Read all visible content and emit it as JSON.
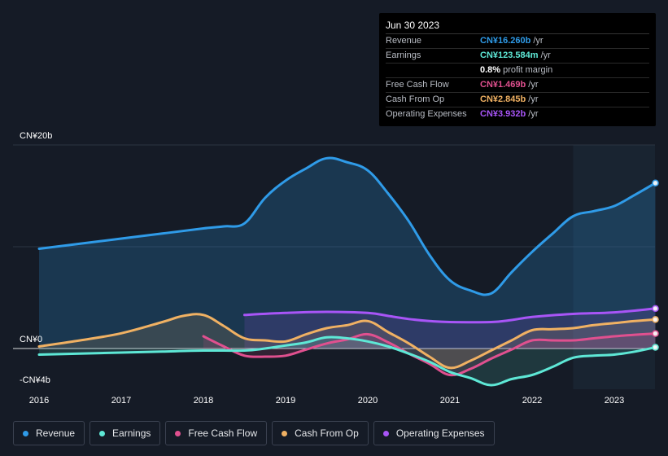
{
  "tooltip": {
    "date": "Jun 30 2023",
    "rows": [
      {
        "label": "Revenue",
        "value": "CN¥16.260b",
        "unit": "/yr",
        "color": "#2f9be8"
      },
      {
        "label": "Earnings",
        "value": "CN¥123.584m",
        "unit": "/yr",
        "color": "#5ee8d6"
      },
      {
        "label": "",
        "value": "0.8%",
        "unit": "profit margin",
        "color": "#ffffff"
      },
      {
        "label": "Free Cash Flow",
        "value": "CN¥1.469b",
        "unit": "/yr",
        "color": "#e0508f"
      },
      {
        "label": "Cash From Op",
        "value": "CN¥2.845b",
        "unit": "/yr",
        "color": "#f0b163"
      },
      {
        "label": "Operating Expenses",
        "value": "CN¥3.932b",
        "unit": "/yr",
        "color": "#a855f7"
      }
    ]
  },
  "legend": [
    {
      "label": "Revenue",
      "color": "#2f9be8"
    },
    {
      "label": "Earnings",
      "color": "#5ee8d6"
    },
    {
      "label": "Free Cash Flow",
      "color": "#e0508f"
    },
    {
      "label": "Cash From Op",
      "color": "#f0b163"
    },
    {
      "label": "Operating Expenses",
      "color": "#a855f7"
    }
  ],
  "chart_data": {
    "type": "line",
    "title": "",
    "xlabel": "",
    "ylabel": "",
    "ylim": [
      -4,
      20
    ],
    "xlim": [
      2015.67,
      2023.5
    ],
    "y_tick_labels": [
      {
        "value": 20,
        "label": "CN¥20b"
      },
      {
        "value": 0,
        "label": "CN¥0"
      },
      {
        "value": -4,
        "label": "-CN¥4b"
      }
    ],
    "x_ticks": [
      2016,
      2017,
      2018,
      2019,
      2020,
      2021,
      2022,
      2023
    ],
    "x_tick_labels": [
      "2016",
      "2017",
      "2018",
      "2019",
      "2020",
      "2021",
      "2022",
      "2023"
    ],
    "gridlines": [
      20,
      10,
      0
    ],
    "highlight_start": 2022.5,
    "series": [
      {
        "name": "Revenue",
        "color": "#2f9be8",
        "fill": true,
        "points": [
          [
            2016,
            9.8
          ],
          [
            2016.5,
            10.3
          ],
          [
            2017,
            10.8
          ],
          [
            2017.5,
            11.3
          ],
          [
            2018,
            11.8
          ],
          [
            2018.25,
            12.0
          ],
          [
            2018.5,
            12.3
          ],
          [
            2018.75,
            14.8
          ],
          [
            2019,
            16.5
          ],
          [
            2019.25,
            17.7
          ],
          [
            2019.5,
            18.7
          ],
          [
            2019.75,
            18.3
          ],
          [
            2020,
            17.5
          ],
          [
            2020.25,
            15.2
          ],
          [
            2020.5,
            12.5
          ],
          [
            2020.75,
            9.2
          ],
          [
            2021,
            6.7
          ],
          [
            2021.25,
            5.7
          ],
          [
            2021.5,
            5.4
          ],
          [
            2021.75,
            7.5
          ],
          [
            2022,
            9.5
          ],
          [
            2022.25,
            11.3
          ],
          [
            2022.5,
            13.0
          ],
          [
            2022.75,
            13.5
          ],
          [
            2023,
            14.0
          ],
          [
            2023.25,
            15.1
          ],
          [
            2023.5,
            16.26
          ]
        ]
      },
      {
        "name": "Earnings",
        "color": "#5ee8d6",
        "fill": true,
        "points": [
          [
            2016,
            -0.6
          ],
          [
            2016.5,
            -0.5
          ],
          [
            2017,
            -0.4
          ],
          [
            2017.5,
            -0.3
          ],
          [
            2018,
            -0.2
          ],
          [
            2018.5,
            -0.2
          ],
          [
            2018.75,
            0.0
          ],
          [
            2019,
            0.3
          ],
          [
            2019.25,
            0.6
          ],
          [
            2019.5,
            1.1
          ],
          [
            2019.75,
            1.0
          ],
          [
            2020,
            0.7
          ],
          [
            2020.25,
            0.2
          ],
          [
            2020.5,
            -0.5
          ],
          [
            2020.75,
            -1.3
          ],
          [
            2021,
            -2.3
          ],
          [
            2021.25,
            -2.9
          ],
          [
            2021.5,
            -3.6
          ],
          [
            2021.75,
            -3.0
          ],
          [
            2022,
            -2.6
          ],
          [
            2022.25,
            -1.8
          ],
          [
            2022.5,
            -0.9
          ],
          [
            2022.75,
            -0.7
          ],
          [
            2023,
            -0.6
          ],
          [
            2023.25,
            -0.3
          ],
          [
            2023.5,
            0.12
          ]
        ]
      },
      {
        "name": "Free Cash Flow",
        "color": "#e0508f",
        "fill": true,
        "points": [
          [
            2018,
            1.2
          ],
          [
            2018.25,
            0.2
          ],
          [
            2018.5,
            -0.7
          ],
          [
            2018.75,
            -0.8
          ],
          [
            2019,
            -0.7
          ],
          [
            2019.25,
            -0.1
          ],
          [
            2019.5,
            0.5
          ],
          [
            2019.75,
            0.9
          ],
          [
            2020,
            1.4
          ],
          [
            2020.25,
            0.6
          ],
          [
            2020.5,
            -0.5
          ],
          [
            2020.75,
            -1.5
          ],
          [
            2021,
            -2.6
          ],
          [
            2021.25,
            -2.0
          ],
          [
            2021.5,
            -1.0
          ],
          [
            2021.75,
            -0.1
          ],
          [
            2022,
            0.8
          ],
          [
            2022.25,
            0.8
          ],
          [
            2022.5,
            0.8
          ],
          [
            2022.75,
            1.0
          ],
          [
            2023,
            1.2
          ],
          [
            2023.25,
            1.35
          ],
          [
            2023.5,
            1.47
          ]
        ]
      },
      {
        "name": "Cash From Op",
        "color": "#f0b163",
        "fill": true,
        "points": [
          [
            2016,
            0.2
          ],
          [
            2016.5,
            0.8
          ],
          [
            2017,
            1.5
          ],
          [
            2017.5,
            2.6
          ],
          [
            2017.75,
            3.2
          ],
          [
            2018,
            3.3
          ],
          [
            2018.25,
            2.2
          ],
          [
            2018.5,
            1.0
          ],
          [
            2018.75,
            0.8
          ],
          [
            2019,
            0.7
          ],
          [
            2019.25,
            1.4
          ],
          [
            2019.5,
            2.0
          ],
          [
            2019.75,
            2.3
          ],
          [
            2020,
            2.7
          ],
          [
            2020.25,
            1.6
          ],
          [
            2020.5,
            0.5
          ],
          [
            2020.75,
            -0.8
          ],
          [
            2021,
            -1.9
          ],
          [
            2021.25,
            -1.2
          ],
          [
            2021.5,
            -0.2
          ],
          [
            2021.75,
            0.8
          ],
          [
            2022,
            1.8
          ],
          [
            2022.25,
            1.9
          ],
          [
            2022.5,
            2.0
          ],
          [
            2022.75,
            2.3
          ],
          [
            2023,
            2.5
          ],
          [
            2023.25,
            2.7
          ],
          [
            2023.5,
            2.85
          ]
        ]
      },
      {
        "name": "Operating Expenses",
        "color": "#a855f7",
        "fill": true,
        "points": [
          [
            2018.5,
            3.3
          ],
          [
            2019,
            3.5
          ],
          [
            2019.5,
            3.6
          ],
          [
            2020,
            3.5
          ],
          [
            2020.25,
            3.2
          ],
          [
            2020.5,
            2.9
          ],
          [
            2020.75,
            2.7
          ],
          [
            2021,
            2.6
          ],
          [
            2021.5,
            2.6
          ],
          [
            2021.75,
            2.8
          ],
          [
            2022,
            3.1
          ],
          [
            2022.5,
            3.4
          ],
          [
            2023,
            3.55
          ],
          [
            2023.5,
            3.93
          ]
        ]
      }
    ]
  }
}
